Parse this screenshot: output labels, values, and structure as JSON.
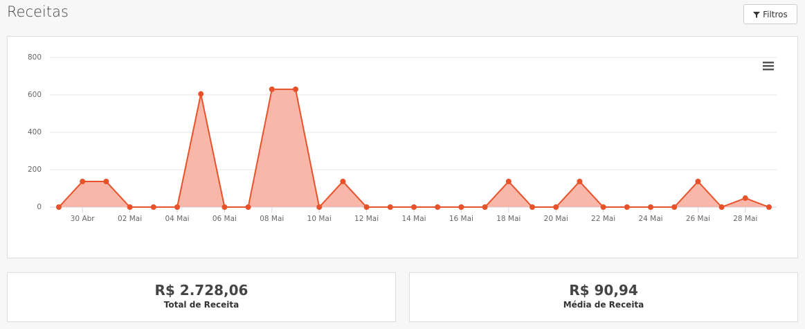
{
  "header": {
    "title": "Receitas",
    "button": "Filtros"
  },
  "chart_data": {
    "type": "area",
    "categories": [
      null,
      "30 Abr",
      null,
      "02 Mai",
      null,
      "04 Mai",
      null,
      "06 Mai",
      null,
      "08 Mai",
      null,
      "10 Mai",
      null,
      "12 Mai",
      null,
      "14 Mai",
      null,
      "16 Mai",
      null,
      "18 Mai",
      null,
      "20 Mai",
      null,
      "22 Mai",
      null,
      "24 Mai",
      null,
      "26 Mai",
      null,
      "28 Mai",
      null
    ],
    "series": [
      {
        "color": "#e8522a",
        "fill": "#f8b7a8",
        "values": [
          0,
          137,
          137,
          0,
          0,
          0,
          605,
          0,
          0,
          630,
          630,
          0,
          137,
          0,
          0,
          0,
          0,
          0,
          0,
          137,
          0,
          0,
          137,
          0,
          0,
          0,
          0,
          137,
          0,
          48,
          0
        ]
      }
    ],
    "ylim": [
      0,
      800
    ],
    "yticks": [
      0,
      200,
      400,
      600,
      800
    ],
    "grid": true
  },
  "summary": [
    {
      "value": "R$ 2.728,06",
      "label": "Total de Receita"
    },
    {
      "value": "R$ 90,94",
      "label": "Média de Receita"
    }
  ]
}
